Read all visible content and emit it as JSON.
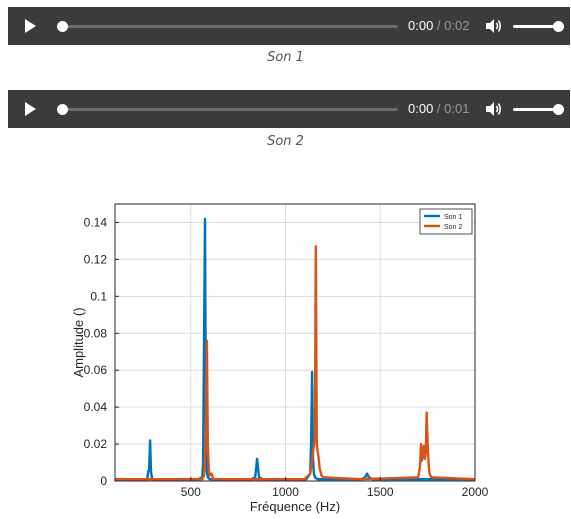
{
  "players": [
    {
      "current_time": "0:00",
      "separator": " / ",
      "duration": "0:02",
      "caption": "Son 1",
      "progress": 0,
      "volume": 1
    },
    {
      "current_time": "0:00",
      "separator": " / ",
      "duration": "0:01",
      "caption": "Son 2",
      "progress": 0,
      "volume": 1
    }
  ],
  "colors": {
    "player_bg": "#3b3b3b",
    "series_son1": "#0072bd",
    "series_son2": "#d95319"
  },
  "chart_data": {
    "type": "line",
    "title": "",
    "xlabel": "Fréquence (Hz)",
    "ylabel": "Amplitude ()",
    "xlim": [
      100,
      2000
    ],
    "ylim": [
      0,
      0.15
    ],
    "xticks": [
      500,
      1000,
      1500,
      2000
    ],
    "xtick_labels": [
      "500",
      "1000",
      "1500",
      "2000"
    ],
    "yticks": [
      0,
      0.02,
      0.04,
      0.06,
      0.08,
      0.1,
      0.12,
      0.14
    ],
    "ytick_labels": [
      "0",
      "0.02",
      "0.04",
      "0.06",
      "0.08",
      "0.1",
      "0.12",
      "0.14"
    ],
    "grid": true,
    "legend_position": "top-right",
    "series": [
      {
        "name": "Son 1",
        "x": [
          100,
          270,
          275,
          280,
          285,
          290,
          295,
          300,
          540,
          560,
          565,
          570,
          575,
          580,
          585,
          590,
          600,
          820,
          840,
          850,
          860,
          880,
          1110,
          1130,
          1135,
          1140,
          1145,
          1150,
          1155,
          1170,
          1400,
          1420,
          1430,
          1440,
          1460,
          1700,
          2000
        ],
        "y": [
          0.001,
          0.001,
          0.005,
          0.006,
          0.022,
          0.005,
          0.002,
          0.001,
          0.001,
          0.002,
          0.01,
          0.08,
          0.142,
          0.03,
          0.005,
          0.002,
          0.001,
          0.001,
          0.002,
          0.012,
          0.002,
          0.001,
          0.001,
          0.004,
          0.02,
          0.059,
          0.012,
          0.004,
          0.002,
          0.001,
          0.001,
          0.002,
          0.004,
          0.002,
          0.001,
          0.001,
          0.001
        ]
      },
      {
        "name": "Son 2",
        "x": [
          100,
          560,
          570,
          575,
          580,
          585,
          590,
          595,
          600,
          610,
          620,
          1100,
          1130,
          1140,
          1145,
          1150,
          1155,
          1160,
          1165,
          1170,
          1175,
          1180,
          1190,
          1200,
          1400,
          1700,
          1710,
          1715,
          1720,
          1725,
          1730,
          1735,
          1740,
          1745,
          1750,
          1755,
          1760,
          1770,
          2000
        ],
        "y": [
          0.001,
          0.001,
          0.003,
          0.012,
          0.025,
          0.076,
          0.02,
          0.006,
          0.003,
          0.004,
          0.001,
          0.001,
          0.004,
          0.011,
          0.016,
          0.019,
          0.025,
          0.127,
          0.02,
          0.016,
          0.012,
          0.007,
          0.003,
          0.002,
          0.001,
          0.002,
          0.008,
          0.02,
          0.011,
          0.015,
          0.019,
          0.012,
          0.015,
          0.037,
          0.02,
          0.01,
          0.004,
          0.002,
          0.001
        ]
      }
    ]
  }
}
